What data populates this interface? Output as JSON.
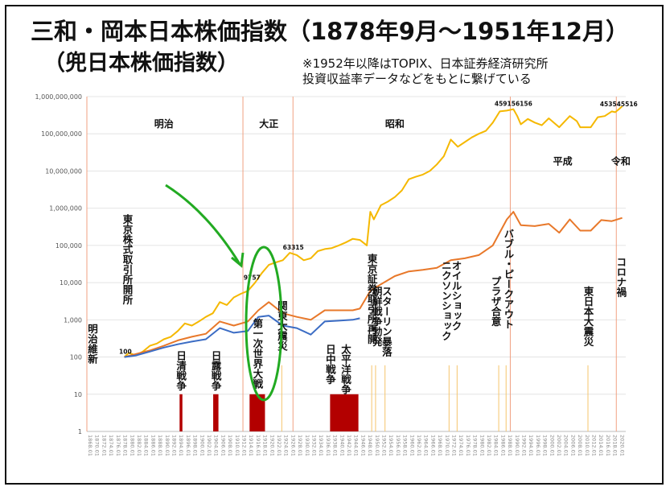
{
  "title": "三和・岡本日本株価指数（1878年9月〜1951年12月）",
  "subtitle": "（兜日本株価指数）",
  "note_line1": "※1952年以降はTOPIX、日本証券経済研究所",
  "note_line2": "投資収益率データなどをもとに繋げている",
  "colors": {
    "gold": "#f5b800",
    "orange": "#e8782a",
    "blue": "#3b6cc4",
    "war": "#b30000",
    "event_line": "#f5c46b",
    "era_line": "#f0a080",
    "arrow": "#22aa22"
  },
  "chart_data": {
    "type": "line",
    "yscale": "log",
    "ylim": [
      1,
      1000000000
    ],
    "yticks": [
      "1",
      "10",
      "100",
      "1,000",
      "10,000",
      "100,000",
      "1,000,000",
      "10,000,000",
      "100,000,000",
      "1,000,000,000"
    ],
    "x_range": [
      1868,
      2022
    ],
    "xticks": [
      "1868.01",
      "1870.01",
      "1872.01",
      "1874.01",
      "1876.01",
      "1878.01",
      "1880.01",
      "1882.01",
      "1884.01",
      "1886.01",
      "1888.01",
      "1890.01",
      "1892.01",
      "1894.01",
      "1896.01",
      "1898.01",
      "1900.01",
      "1902.01",
      "1904.01",
      "1906.01",
      "1908.01",
      "1910.01",
      "1912.01",
      "1914.01",
      "1916.01",
      "1918.01",
      "1920.01",
      "1922.01",
      "1924.01",
      "1926.01",
      "1928.01",
      "1930.01",
      "1932.01",
      "1934.01",
      "1936.01",
      "1938.01",
      "1940.01",
      "1942.01",
      "1944.01",
      "1946.01",
      "1948.01",
      "1950.01",
      "1952.01",
      "1954.01",
      "1956.01",
      "1958.01",
      "1960.01",
      "1962.01",
      "1964.01",
      "1966.01",
      "1968.01",
      "1970.01",
      "1972.01",
      "1974.01",
      "1976.01",
      "1978.01",
      "1980.01",
      "1982.01",
      "1984.01",
      "1986.01",
      "1988.01",
      "1990.01",
      "1992.01",
      "1994.01",
      "1996.01",
      "1998.01",
      "2000.01",
      "2002.01",
      "2004.01",
      "2006.01",
      "2008.01",
      "2010.01",
      "2012.01",
      "2014.01",
      "2016.01",
      "2018.01",
      "2020.01"
    ],
    "series": [
      {
        "key": "gold",
        "points": [
          [
            1878.7,
            100
          ],
          [
            1880,
            130
          ],
          [
            1882,
            110
          ],
          [
            1884,
            140
          ],
          [
            1886,
            200
          ],
          [
            1888,
            230
          ],
          [
            1890,
            300
          ],
          [
            1892,
            350
          ],
          [
            1894,
            500
          ],
          [
            1896,
            800
          ],
          [
            1898,
            700
          ],
          [
            1900,
            900
          ],
          [
            1902,
            1200
          ],
          [
            1904,
            1500
          ],
          [
            1906,
            3000
          ],
          [
            1908,
            2500
          ],
          [
            1910,
            4000
          ],
          [
            1912,
            5000
          ],
          [
            1914,
            6000
          ],
          [
            1916,
            9757
          ],
          [
            1918,
            18000
          ],
          [
            1920,
            30000
          ],
          [
            1922,
            35000
          ],
          [
            1924,
            40000
          ],
          [
            1926,
            63315
          ],
          [
            1928,
            55000
          ],
          [
            1930,
            40000
          ],
          [
            1932,
            45000
          ],
          [
            1934,
            70000
          ],
          [
            1936,
            80000
          ],
          [
            1938,
            85000
          ],
          [
            1940,
            100000
          ],
          [
            1942,
            120000
          ],
          [
            1944,
            150000
          ],
          [
            1946,
            140000
          ],
          [
            1948,
            100000
          ],
          [
            1949,
            800000
          ],
          [
            1950,
            500000
          ],
          [
            1952,
            1200000
          ],
          [
            1954,
            1500000
          ],
          [
            1956,
            2000000
          ],
          [
            1958,
            3000000
          ],
          [
            1960,
            6000000
          ],
          [
            1962,
            7000000
          ],
          [
            1964,
            8000000
          ],
          [
            1966,
            10000000
          ],
          [
            1968,
            15000000
          ],
          [
            1970,
            25000000
          ],
          [
            1972,
            70000000
          ],
          [
            1974,
            45000000
          ],
          [
            1976,
            60000000
          ],
          [
            1978,
            80000000
          ],
          [
            1980,
            100000000
          ],
          [
            1982,
            120000000
          ],
          [
            1984,
            200000000
          ],
          [
            1986,
            400000000
          ],
          [
            1988,
            420000000
          ],
          [
            1989.9,
            459156156
          ],
          [
            1991,
            300000000
          ],
          [
            1992,
            180000000
          ],
          [
            1994,
            250000000
          ],
          [
            1996,
            200000000
          ],
          [
            1998,
            170000000
          ],
          [
            2000,
            260000000
          ],
          [
            2003,
            150000000
          ],
          [
            2006,
            300000000
          ],
          [
            2008,
            220000000
          ],
          [
            2009,
            150000000
          ],
          [
            2012,
            150000000
          ],
          [
            2014,
            280000000
          ],
          [
            2016,
            300000000
          ],
          [
            2018,
            400000000
          ],
          [
            2019,
            380000000
          ],
          [
            2020,
            453545516
          ],
          [
            2021,
            550000000
          ]
        ]
      },
      {
        "key": "orange",
        "points": [
          [
            1878.7,
            100
          ],
          [
            1882,
            120
          ],
          [
            1886,
            150
          ],
          [
            1890,
            200
          ],
          [
            1894,
            280
          ],
          [
            1898,
            350
          ],
          [
            1902,
            420
          ],
          [
            1906,
            900
          ],
          [
            1910,
            700
          ],
          [
            1914,
            900
          ],
          [
            1917,
            1800
          ],
          [
            1920,
            3000
          ],
          [
            1924,
            1500
          ],
          [
            1928,
            1200
          ],
          [
            1932,
            1000
          ],
          [
            1936,
            1800
          ],
          [
            1940,
            1800
          ],
          [
            1944,
            1800
          ],
          [
            1946,
            2000
          ],
          [
            1949,
            6000
          ],
          [
            1952,
            9000
          ],
          [
            1956,
            15000
          ],
          [
            1960,
            20000
          ],
          [
            1964,
            22000
          ],
          [
            1968,
            25000
          ],
          [
            1972,
            40000
          ],
          [
            1976,
            45000
          ],
          [
            1980,
            55000
          ],
          [
            1984,
            100000
          ],
          [
            1988,
            500000
          ],
          [
            1989.9,
            800000
          ],
          [
            1992,
            350000
          ],
          [
            1996,
            330000
          ],
          [
            2000,
            380000
          ],
          [
            2003,
            220000
          ],
          [
            2006,
            500000
          ],
          [
            2009,
            250000
          ],
          [
            2012,
            250000
          ],
          [
            2015,
            480000
          ],
          [
            2018,
            450000
          ],
          [
            2021,
            550000
          ]
        ]
      },
      {
        "key": "blue",
        "points": [
          [
            1878.7,
            100
          ],
          [
            1882,
            110
          ],
          [
            1886,
            140
          ],
          [
            1890,
            180
          ],
          [
            1894,
            220
          ],
          [
            1898,
            260
          ],
          [
            1902,
            300
          ],
          [
            1906,
            600
          ],
          [
            1910,
            450
          ],
          [
            1914,
            500
          ],
          [
            1917,
            1200
          ],
          [
            1920,
            1300
          ],
          [
            1924,
            700
          ],
          [
            1928,
            600
          ],
          [
            1932,
            400
          ],
          [
            1936,
            900
          ],
          [
            1940,
            950
          ],
          [
            1944,
            1000
          ],
          [
            1946,
            1100
          ]
        ]
      }
    ],
    "value_labels": [
      {
        "year": 1879,
        "value": 100,
        "text": "100"
      },
      {
        "year": 1915.2,
        "value": 9757,
        "text": "9757"
      },
      {
        "year": 1927,
        "value": 63315,
        "text": "63315"
      },
      {
        "year": 1989.9,
        "value": 459156156,
        "text": "459156156"
      },
      {
        "year": 2020,
        "value": 453545516,
        "text": "453545516"
      }
    ],
    "era_lines": [
      1868,
      1912.6,
      1926.9,
      1989.0,
      2019.3
    ],
    "eras": [
      {
        "label": "明治",
        "year": 1890,
        "value": 150000000
      },
      {
        "label": "大正",
        "year": 1920,
        "value": 150000000
      },
      {
        "label": "昭和",
        "year": 1956,
        "value": 150000000
      },
      {
        "label": "平成",
        "year": 2004,
        "value": 15000000
      },
      {
        "label": "令和",
        "year": 2020.6,
        "value": 15000000
      }
    ],
    "wars": [
      {
        "from": 1894.5,
        "to": 1895.3,
        "value": 10
      },
      {
        "from": 1904.1,
        "to": 1905.6,
        "value": 10
      },
      {
        "from": 1914.5,
        "to": 1918.9,
        "value": 10
      },
      {
        "from": 1937.5,
        "to": 1945.6,
        "value": 10
      }
    ],
    "event_lines": [
      1923.7,
      1949.4,
      1950.5,
      1953.2,
      1971.5,
      1973.8,
      1985.7,
      1987.8,
      2011.2
    ],
    "events": [
      {
        "text": "明治維新",
        "year": 1869.5,
        "value": 800
      },
      {
        "text": "東京株式取引所開所",
        "year": 1879.5,
        "value": 700000
      },
      {
        "text": "日清戦争",
        "year": 1894.8,
        "value": 150
      },
      {
        "text": "日露戦争",
        "year": 1904.8,
        "value": 150
      },
      {
        "text": "第一次世界大戦",
        "year": 1916.7,
        "value": 1100
      },
      {
        "text": "関東大震災",
        "year": 1923.7,
        "value": 3300
      },
      {
        "text": "日中戦争",
        "year": 1937.5,
        "value": 220
      },
      {
        "text": "太平洋戦争",
        "year": 1941.9,
        "value": 220
      },
      {
        "text": "東京証券取引所再開",
        "year": 1949.4,
        "value": 60000
      },
      {
        "text": "朝鮮戦争勃発",
        "year": 1950.8,
        "value": 8000
      },
      {
        "text": "スターリン暴落",
        "year": 1953.6,
        "value": 8000
      },
      {
        "text": "ニクソンショック",
        "year": 1970.6,
        "value": 40000
      },
      {
        "text": "オイルショック",
        "year": 1973.5,
        "value": 40000
      },
      {
        "text": "プラザ合意",
        "year": 1984.8,
        "value": 15000
      },
      {
        "text": "バブル・ピークアウト",
        "year": 1988.4,
        "value": 280000
      },
      {
        "text": "東日本大震災",
        "year": 2011.2,
        "value": 8000
      },
      {
        "text": "コロナ禍",
        "year": 2020.6,
        "value": 50000
      }
    ]
  }
}
